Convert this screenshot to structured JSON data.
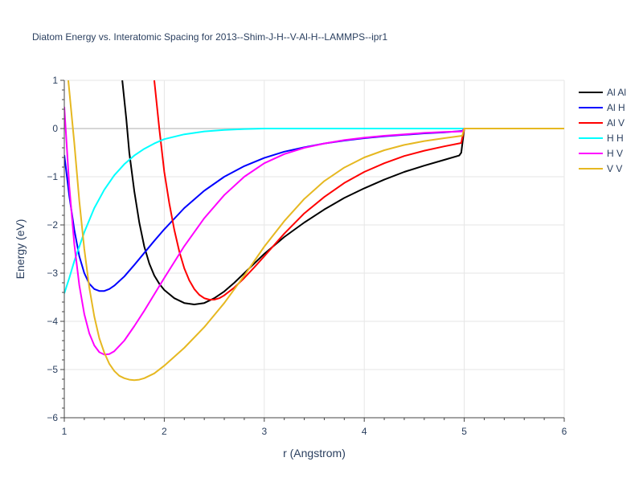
{
  "chart_data": {
    "type": "line",
    "title": "Diatom Energy vs. Interatomic Spacing for 2013--Shim-J-H--V-Al-H--LAMMPS--ipr1",
    "xlabel": "r (Angstrom)",
    "ylabel": "Energy (eV)",
    "xlim": [
      1,
      6
    ],
    "ylim": [
      -6,
      1
    ],
    "x_ticks": [
      "1",
      "2",
      "3",
      "4",
      "5",
      "6"
    ],
    "y_ticks": [
      "1",
      "0",
      "−1",
      "−2",
      "−3",
      "−4",
      "−5",
      "−6"
    ],
    "grid": true,
    "legend_position": "right",
    "series": [
      {
        "name": "Al Al",
        "color": "#000000",
        "points": [
          [
            1.58,
            1.0
          ],
          [
            1.62,
            0.2
          ],
          [
            1.65,
            -0.5
          ],
          [
            1.7,
            -1.3
          ],
          [
            1.75,
            -1.95
          ],
          [
            1.8,
            -2.45
          ],
          [
            1.85,
            -2.8
          ],
          [
            1.9,
            -3.05
          ],
          [
            1.95,
            -3.22
          ],
          [
            2.0,
            -3.35
          ],
          [
            2.1,
            -3.52
          ],
          [
            2.2,
            -3.62
          ],
          [
            2.3,
            -3.65
          ],
          [
            2.4,
            -3.62
          ],
          [
            2.5,
            -3.52
          ],
          [
            2.6,
            -3.38
          ],
          [
            2.7,
            -3.2
          ],
          [
            2.8,
            -3.0
          ],
          [
            2.9,
            -2.8
          ],
          [
            3.0,
            -2.6
          ],
          [
            3.2,
            -2.25
          ],
          [
            3.4,
            -1.95
          ],
          [
            3.6,
            -1.68
          ],
          [
            3.8,
            -1.44
          ],
          [
            4.0,
            -1.24
          ],
          [
            4.2,
            -1.06
          ],
          [
            4.4,
            -0.9
          ],
          [
            4.6,
            -0.77
          ],
          [
            4.8,
            -0.65
          ],
          [
            4.95,
            -0.56
          ],
          [
            4.97,
            -0.5
          ],
          [
            5.0,
            0.0
          ],
          [
            6.0,
            0.0
          ]
        ]
      },
      {
        "name": "Al H",
        "color": "#0000ff",
        "points": [
          [
            1.0,
            -0.55
          ],
          [
            1.05,
            -1.4
          ],
          [
            1.1,
            -2.1
          ],
          [
            1.15,
            -2.65
          ],
          [
            1.2,
            -3.0
          ],
          [
            1.25,
            -3.22
          ],
          [
            1.3,
            -3.33
          ],
          [
            1.35,
            -3.37
          ],
          [
            1.4,
            -3.37
          ],
          [
            1.45,
            -3.33
          ],
          [
            1.5,
            -3.26
          ],
          [
            1.6,
            -3.07
          ],
          [
            1.7,
            -2.83
          ],
          [
            1.8,
            -2.58
          ],
          [
            1.9,
            -2.33
          ],
          [
            2.0,
            -2.09
          ],
          [
            2.2,
            -1.65
          ],
          [
            2.4,
            -1.29
          ],
          [
            2.6,
            -1.0
          ],
          [
            2.8,
            -0.78
          ],
          [
            3.0,
            -0.61
          ],
          [
            3.2,
            -0.48
          ],
          [
            3.4,
            -0.39
          ],
          [
            3.6,
            -0.31
          ],
          [
            3.8,
            -0.25
          ],
          [
            4.0,
            -0.2
          ],
          [
            4.2,
            -0.16
          ],
          [
            4.4,
            -0.13
          ],
          [
            4.6,
            -0.1
          ],
          [
            4.8,
            -0.08
          ],
          [
            4.98,
            -0.05
          ],
          [
            5.0,
            0.0
          ],
          [
            6.0,
            0.0
          ]
        ]
      },
      {
        "name": "Al V",
        "color": "#ff0000",
        "points": [
          [
            1.9,
            1.0
          ],
          [
            1.95,
            0.0
          ],
          [
            2.0,
            -0.9
          ],
          [
            2.05,
            -1.55
          ],
          [
            2.1,
            -2.1
          ],
          [
            2.15,
            -2.55
          ],
          [
            2.2,
            -2.9
          ],
          [
            2.25,
            -3.15
          ],
          [
            2.3,
            -3.33
          ],
          [
            2.35,
            -3.45
          ],
          [
            2.4,
            -3.52
          ],
          [
            2.45,
            -3.55
          ],
          [
            2.5,
            -3.55
          ],
          [
            2.55,
            -3.52
          ],
          [
            2.6,
            -3.46
          ],
          [
            2.7,
            -3.3
          ],
          [
            2.8,
            -3.1
          ],
          [
            2.9,
            -2.88
          ],
          [
            3.0,
            -2.65
          ],
          [
            3.2,
            -2.18
          ],
          [
            3.4,
            -1.76
          ],
          [
            3.6,
            -1.42
          ],
          [
            3.8,
            -1.13
          ],
          [
            4.0,
            -0.9
          ],
          [
            4.2,
            -0.72
          ],
          [
            4.4,
            -0.57
          ],
          [
            4.6,
            -0.46
          ],
          [
            4.8,
            -0.37
          ],
          [
            4.97,
            -0.3
          ],
          [
            5.0,
            0.0
          ],
          [
            6.0,
            0.0
          ]
        ]
      },
      {
        "name": "H H",
        "color": "#00ffff",
        "points": [
          [
            1.0,
            -3.42
          ],
          [
            1.05,
            -3.1
          ],
          [
            1.1,
            -2.75
          ],
          [
            1.2,
            -2.15
          ],
          [
            1.3,
            -1.65
          ],
          [
            1.4,
            -1.27
          ],
          [
            1.5,
            -0.97
          ],
          [
            1.6,
            -0.74
          ],
          [
            1.7,
            -0.56
          ],
          [
            1.8,
            -0.42
          ],
          [
            1.9,
            -0.31
          ],
          [
            2.0,
            -0.22
          ],
          [
            2.2,
            -0.12
          ],
          [
            2.4,
            -0.06
          ],
          [
            2.6,
            -0.03
          ],
          [
            2.8,
            -0.01
          ],
          [
            3.0,
            0.0
          ],
          [
            4.0,
            0.0
          ],
          [
            5.0,
            0.0
          ],
          [
            6.0,
            0.0
          ]
        ]
      },
      {
        "name": "H V",
        "color": "#ff00ff",
        "points": [
          [
            1.0,
            0.45
          ],
          [
            1.05,
            -1.2
          ],
          [
            1.1,
            -2.4
          ],
          [
            1.15,
            -3.25
          ],
          [
            1.2,
            -3.85
          ],
          [
            1.25,
            -4.25
          ],
          [
            1.3,
            -4.5
          ],
          [
            1.35,
            -4.64
          ],
          [
            1.4,
            -4.69
          ],
          [
            1.45,
            -4.68
          ],
          [
            1.5,
            -4.62
          ],
          [
            1.6,
            -4.4
          ],
          [
            1.7,
            -4.1
          ],
          [
            1.8,
            -3.78
          ],
          [
            1.9,
            -3.44
          ],
          [
            2.0,
            -3.1
          ],
          [
            2.2,
            -2.44
          ],
          [
            2.4,
            -1.86
          ],
          [
            2.6,
            -1.38
          ],
          [
            2.8,
            -1.0
          ],
          [
            3.0,
            -0.72
          ],
          [
            3.2,
            -0.53
          ],
          [
            3.4,
            -0.4
          ],
          [
            3.6,
            -0.31
          ],
          [
            3.8,
            -0.24
          ],
          [
            4.0,
            -0.19
          ],
          [
            4.2,
            -0.15
          ],
          [
            4.4,
            -0.12
          ],
          [
            4.6,
            -0.09
          ],
          [
            4.8,
            -0.07
          ],
          [
            4.98,
            -0.06
          ],
          [
            5.0,
            0.0
          ],
          [
            6.0,
            0.0
          ]
        ]
      },
      {
        "name": "V V",
        "color": "#e6b821",
        "points": [
          [
            1.04,
            1.0
          ],
          [
            1.1,
            -0.3
          ],
          [
            1.15,
            -1.5
          ],
          [
            1.2,
            -2.5
          ],
          [
            1.25,
            -3.3
          ],
          [
            1.3,
            -3.9
          ],
          [
            1.35,
            -4.35
          ],
          [
            1.4,
            -4.65
          ],
          [
            1.45,
            -4.88
          ],
          [
            1.5,
            -5.03
          ],
          [
            1.55,
            -5.13
          ],
          [
            1.6,
            -5.18
          ],
          [
            1.65,
            -5.21
          ],
          [
            1.7,
            -5.22
          ],
          [
            1.75,
            -5.21
          ],
          [
            1.8,
            -5.18
          ],
          [
            1.9,
            -5.08
          ],
          [
            2.0,
            -4.92
          ],
          [
            2.2,
            -4.55
          ],
          [
            2.4,
            -4.12
          ],
          [
            2.6,
            -3.62
          ],
          [
            2.8,
            -3.05
          ],
          [
            3.0,
            -2.45
          ],
          [
            3.2,
            -1.92
          ],
          [
            3.4,
            -1.46
          ],
          [
            3.6,
            -1.09
          ],
          [
            3.8,
            -0.81
          ],
          [
            4.0,
            -0.6
          ],
          [
            4.2,
            -0.45
          ],
          [
            4.4,
            -0.34
          ],
          [
            4.6,
            -0.26
          ],
          [
            4.8,
            -0.2
          ],
          [
            4.98,
            -0.15
          ],
          [
            5.0,
            0.0
          ],
          [
            6.0,
            0.0
          ]
        ]
      }
    ]
  }
}
